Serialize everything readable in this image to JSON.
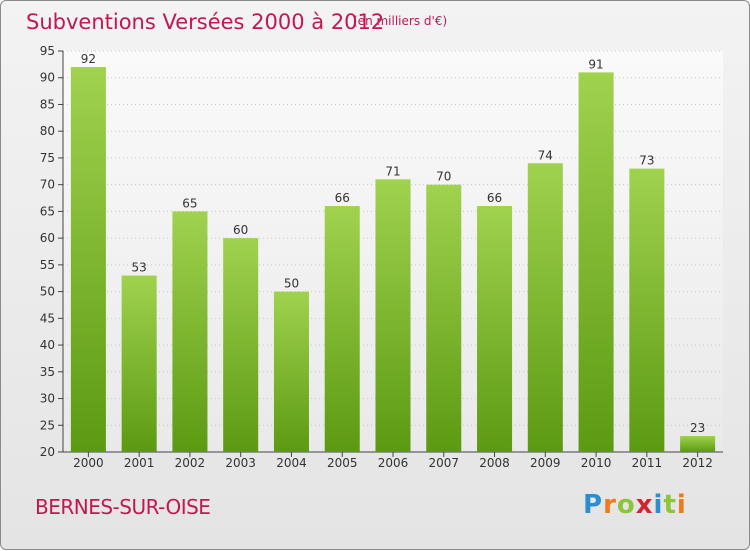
{
  "title": "Subventions Versées 2000 à 2012",
  "subtitle": "(en milliers d'€)",
  "commune": "BERNES-SUR-OISE",
  "logo": {
    "letters": [
      "P",
      "r",
      "o",
      "x",
      "i",
      "t",
      "i"
    ],
    "colors": [
      "#2a8fd1",
      "#ee7a1a",
      "#8cc43a",
      "#d6232f",
      "#2a8fd1",
      "#8cc43a",
      "#ee7a1a"
    ]
  },
  "colors": {
    "title": "#c0184f",
    "bar_light": "#a0d24e",
    "bar_dark": "#5c9a12"
  },
  "chart_data": {
    "type": "bar",
    "categories": [
      "2000",
      "2001",
      "2002",
      "2003",
      "2004",
      "2005",
      "2006",
      "2007",
      "2008",
      "2009",
      "2010",
      "2011",
      "2012"
    ],
    "values": [
      92,
      53,
      65,
      60,
      50,
      66,
      71,
      70,
      66,
      74,
      91,
      73,
      23
    ],
    "ylim": [
      20,
      95
    ],
    "yticks": [
      20,
      25,
      30,
      35,
      40,
      45,
      50,
      55,
      60,
      65,
      70,
      75,
      80,
      85,
      90,
      95
    ],
    "grid": true
  }
}
